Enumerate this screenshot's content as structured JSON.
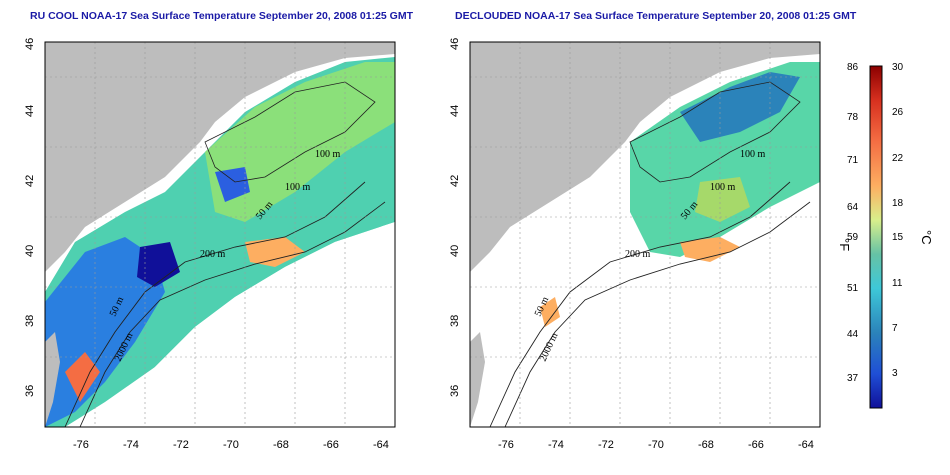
{
  "titles": {
    "left": "RU COOL NOAA-17 Sea Surface Temperature September 20, 2008 01:25 GMT",
    "right": "DECLOUDED NOAA-17 Sea Surface Temperature September 20, 2008 01:25 GMT"
  },
  "map": {
    "lon_range": [
      -77,
      -63
    ],
    "lat_range": [
      35,
      46
    ],
    "lon_ticks": [
      -76,
      -74,
      -72,
      -70,
      -68,
      -66,
      -64
    ],
    "lat_ticks": [
      36,
      38,
      40,
      42,
      44,
      46
    ],
    "land_color": "#bdbdbd",
    "grid_color": "#9a9a9a"
  },
  "contour_labels": {
    "left": [
      "100 m",
      "100 m",
      "50 m",
      "200 m",
      "50 m",
      "2000 m"
    ],
    "right": [
      "100 m",
      "100 m",
      "50 m",
      "200 m",
      "50 m",
      "2000 m"
    ]
  },
  "colorbar": {
    "f_labels": [
      "86",
      "78",
      "71",
      "64",
      "59",
      "51",
      "44",
      "37"
    ],
    "c_labels": [
      "30",
      "26",
      "22",
      "18",
      "15",
      "11",
      "7",
      "3"
    ],
    "f_unit": "°F",
    "c_unit": "°C",
    "colors": [
      "#8b0000",
      "#d7301f",
      "#f46d43",
      "#fdae61",
      "#fee08b",
      "#d9ef8b",
      "#a6d96a",
      "#66c2a5",
      "#3ec8d8",
      "#2b83ba",
      "#1f4fd6",
      "#101099"
    ]
  }
}
